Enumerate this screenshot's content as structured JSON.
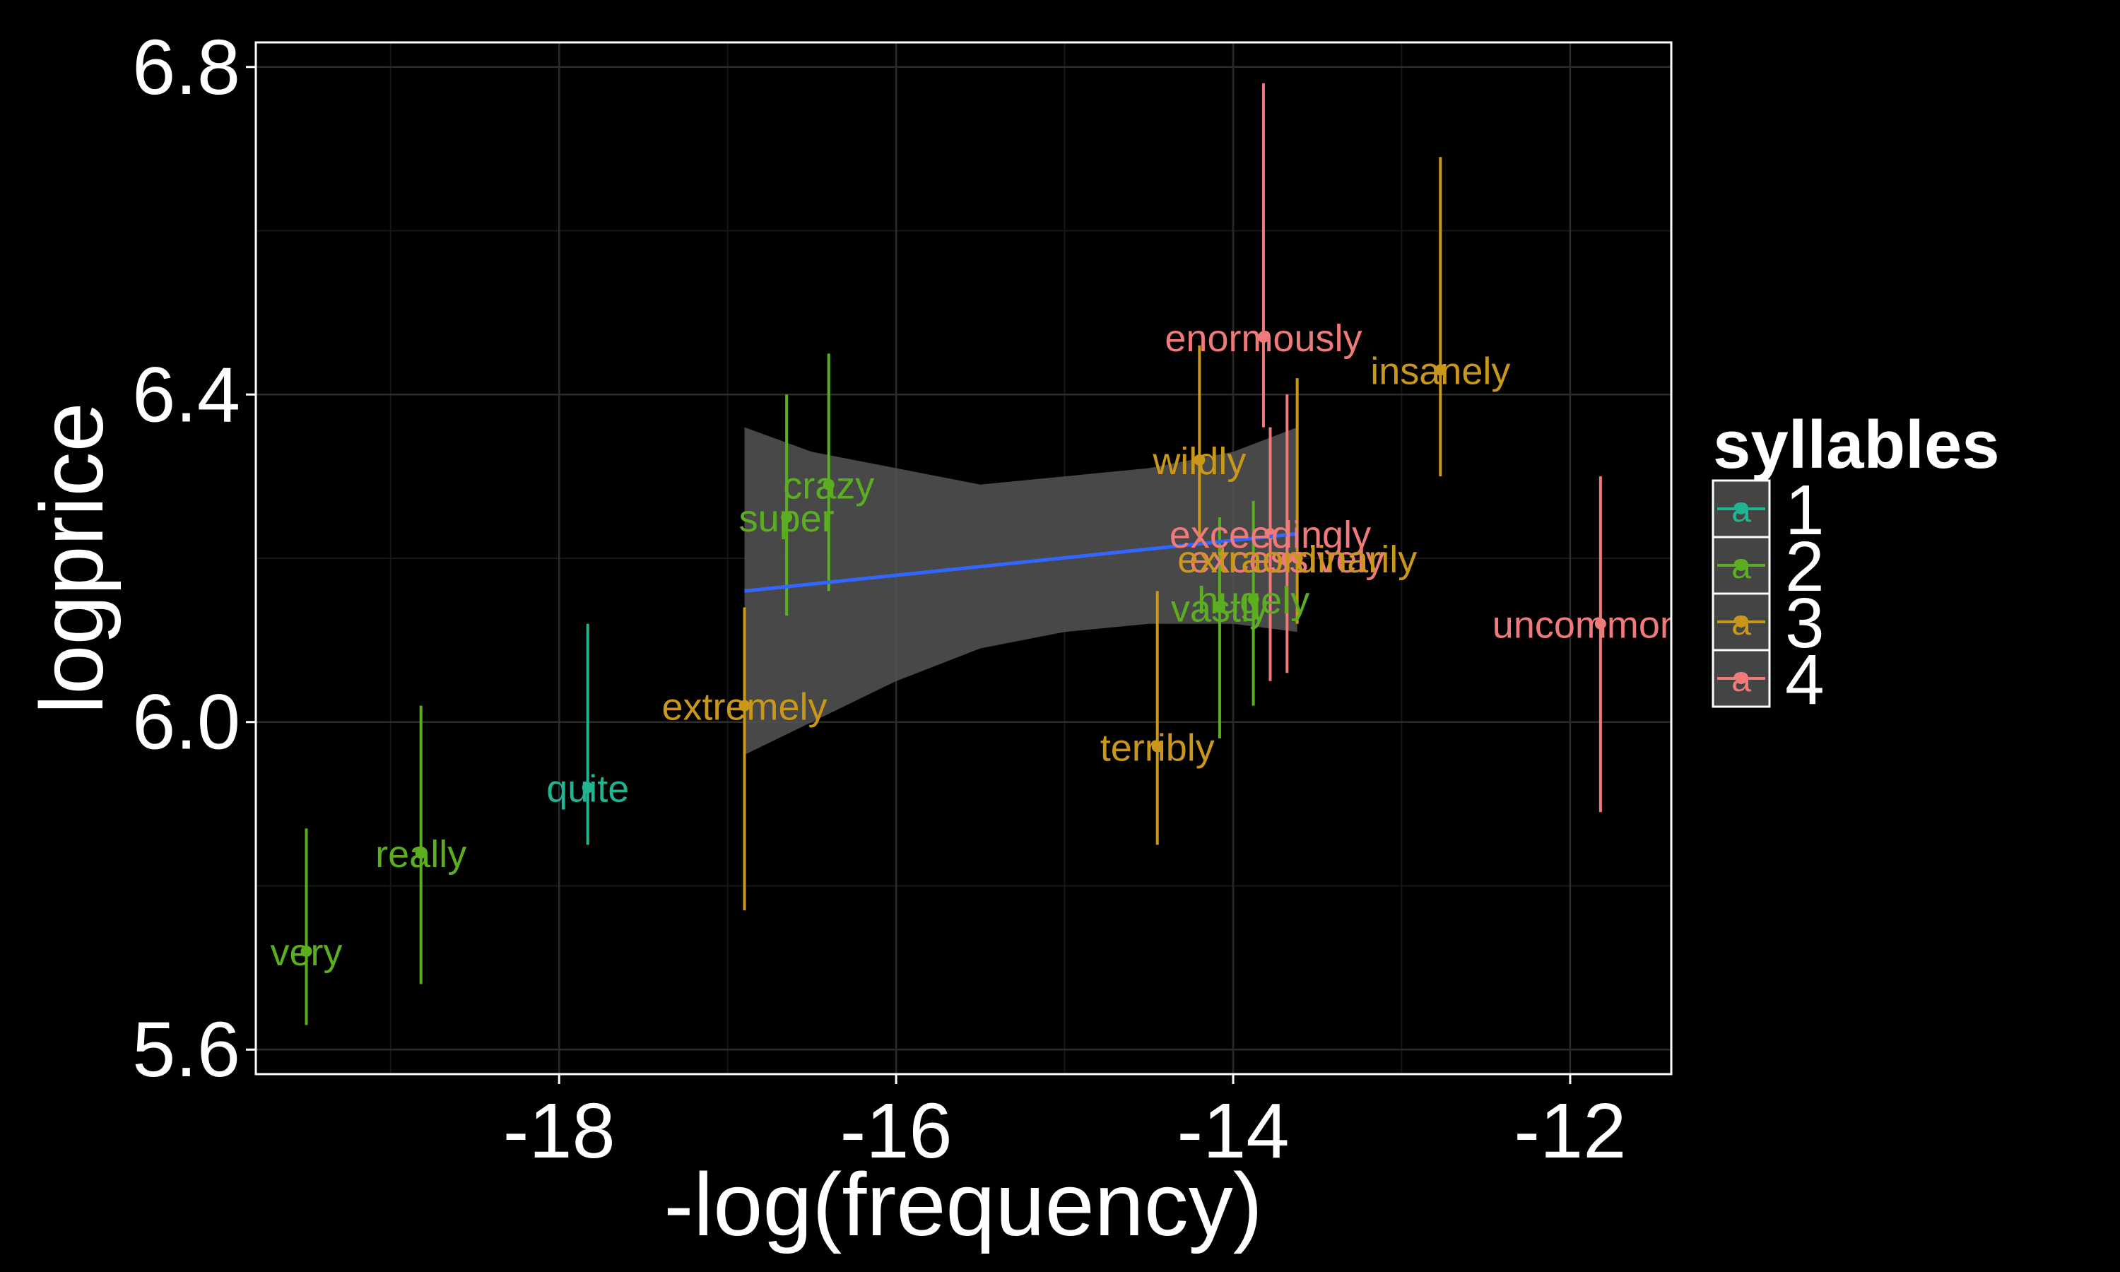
{
  "chart_data": {
    "type": "scatter",
    "title": "",
    "xlabel": "-log(frequency)",
    "ylabel": "logprice",
    "xlim": [
      -19.8,
      -11.4
    ],
    "ylim": [
      5.57,
      6.83
    ],
    "x_ticks": [
      -18,
      -16,
      -14,
      -12
    ],
    "y_ticks": [
      5.6,
      6.0,
      6.4,
      6.8
    ],
    "x_tick_labels": [
      "-18",
      "-16",
      "-14",
      "-12"
    ],
    "y_tick_labels": [
      "5.6",
      "6.0",
      "6.4",
      "6.8"
    ],
    "grid": true,
    "legend": {
      "title": "syllables",
      "placement": "right",
      "key_glyph": "a",
      "entries": [
        {
          "label": "1",
          "color": "#1fb593"
        },
        {
          "label": "2",
          "color": "#5aae20"
        },
        {
          "label": "3",
          "color": "#c9971a"
        },
        {
          "label": "4",
          "color": "#f07a7a"
        }
      ]
    },
    "colors": {
      "1": "#1fb593",
      "2": "#5aae20",
      "3": "#c9971a",
      "4": "#f07a7a",
      "fit": "#3366ff",
      "ribbon": "#555555"
    },
    "points": [
      {
        "label": "very",
        "syllables": "2",
        "x": -19.5,
        "y": 5.72,
        "lo": 5.63,
        "hi": 5.87
      },
      {
        "label": "really",
        "syllables": "2",
        "x": -18.82,
        "y": 5.84,
        "lo": 5.68,
        "hi": 6.02
      },
      {
        "label": "quite",
        "syllables": "1",
        "x": -17.83,
        "y": 5.92,
        "lo": 5.85,
        "hi": 6.12
      },
      {
        "label": "extremely",
        "syllables": "3",
        "x": -16.9,
        "y": 6.02,
        "lo": 5.77,
        "hi": 6.14
      },
      {
        "label": "super",
        "syllables": "2",
        "x": -16.65,
        "y": 6.25,
        "lo": 6.13,
        "hi": 6.4
      },
      {
        "label": "crazy",
        "syllables": "2",
        "x": -16.4,
        "y": 6.29,
        "lo": 6.16,
        "hi": 6.45
      },
      {
        "label": "terribly",
        "syllables": "3",
        "x": -14.45,
        "y": 5.97,
        "lo": 5.85,
        "hi": 6.16
      },
      {
        "label": "vastly",
        "syllables": "2",
        "x": -14.08,
        "y": 6.14,
        "lo": 5.98,
        "hi": 6.25
      },
      {
        "label": "wildly",
        "syllables": "3",
        "x": -14.2,
        "y": 6.32,
        "lo": 6.22,
        "hi": 6.46
      },
      {
        "label": "hugely",
        "syllables": "2",
        "x": -13.88,
        "y": 6.15,
        "lo": 6.02,
        "hi": 6.27
      },
      {
        "label": "enormously",
        "syllables": "4",
        "x": -13.82,
        "y": 6.47,
        "lo": 6.36,
        "hi": 6.78
      },
      {
        "label": "exceedingly",
        "syllables": "4",
        "x": -13.78,
        "y": 6.23,
        "lo": 6.05,
        "hi": 6.36
      },
      {
        "label": "excessively",
        "syllables": "4",
        "x": -13.68,
        "y": 6.2,
        "lo": 6.06,
        "hi": 6.4
      },
      {
        "label": "extraordinarily",
        "syllables": "3",
        "x": -13.62,
        "y": 6.2,
        "lo": 6.12,
        "hi": 6.42
      },
      {
        "label": "insanely",
        "syllables": "3",
        "x": -12.77,
        "y": 6.43,
        "lo": 6.3,
        "hi": 6.69
      },
      {
        "label": "uncommonly",
        "syllables": "4",
        "x": -11.82,
        "y": 6.12,
        "lo": 5.89,
        "hi": 6.3
      }
    ],
    "fit_line": {
      "x": [
        -16.9,
        -13.62
      ],
      "y": [
        6.16,
        6.23
      ]
    },
    "ribbon": {
      "x": [
        -16.9,
        -16.5,
        -16.0,
        -15.5,
        -15.0,
        -14.5,
        -14.0,
        -13.62
      ],
      "lo": [
        5.96,
        6.0,
        6.05,
        6.09,
        6.11,
        6.12,
        6.12,
        6.11
      ],
      "hi": [
        6.36,
        6.33,
        6.31,
        6.29,
        6.3,
        6.31,
        6.33,
        6.36
      ]
    }
  }
}
